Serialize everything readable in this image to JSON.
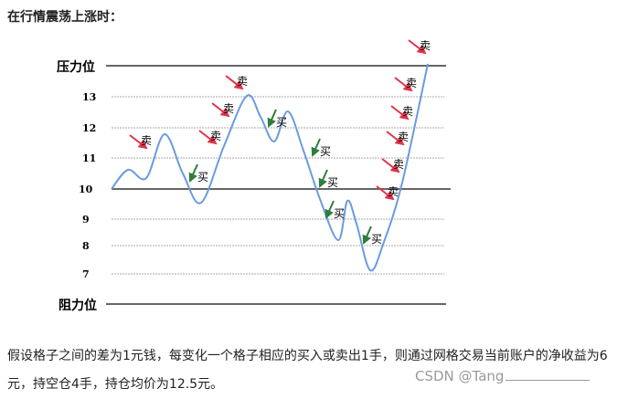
{
  "heading": "在行情震荡上涨时：",
  "diagram": {
    "pressure_label": "压力位",
    "support_label": "阻力位",
    "levels": [
      13,
      12,
      11,
      10,
      9,
      8,
      7
    ],
    "sell_markers": [
      "卖",
      "卖",
      "卖",
      "卖",
      "卖",
      "卖",
      "卖",
      "卖",
      "卖",
      "卖"
    ],
    "buy_markers": [
      "买",
      "买",
      "买",
      "买",
      "买",
      "买"
    ]
  },
  "paragraph": "假设格子之间的差为1元钱，每变化一个格子相应的买入或卖出1手，则通过网格交易当前账户的净收益为6元，持空仓4手，持仓均价为12.5元。",
  "watermark": "CSDN @Tang"
}
